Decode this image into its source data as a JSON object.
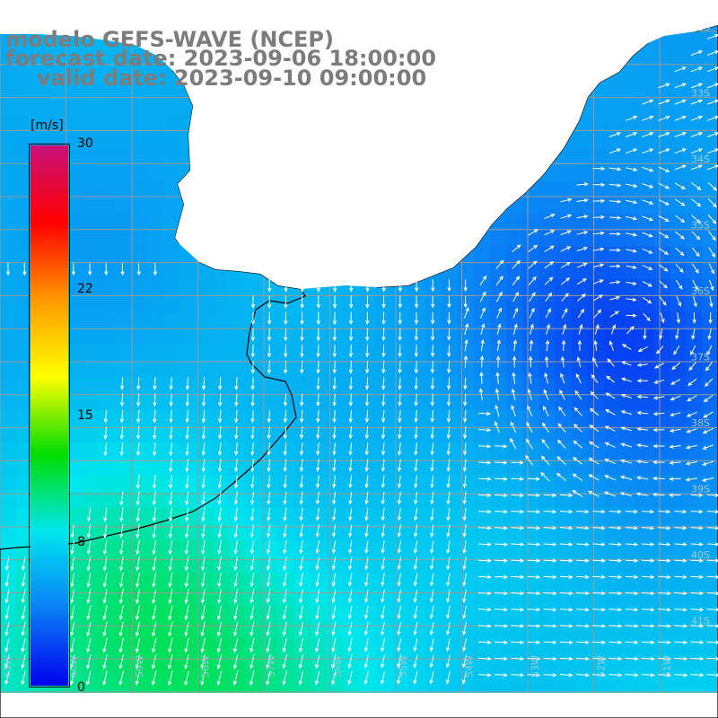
{
  "header": {
    "line1": "modelo GEFS-WAVE (NCEP)",
    "line2": "forecast date: 2023-09-06 18:00:00",
    "line3": "valid date: 2023-09-10 09:00:00"
  },
  "colorbar": {
    "unit": "[m/s]",
    "ticks": [
      {
        "label": "30",
        "value": 30
      },
      {
        "label": "22",
        "value": 22
      },
      {
        "label": "15",
        "value": 15
      },
      {
        "label": "8",
        "value": 8
      },
      {
        "label": "0",
        "value": 0
      }
    ],
    "stops": [
      "#0000ee",
      "#0a7ff5",
      "#00e6ee",
      "#00dd00",
      "#ffff00",
      "#ff9900",
      "#ff0000",
      "#c8107a"
    ]
  },
  "map": {
    "lon_labels": [
      "61W",
      "60W",
      "59W",
      "58W",
      "57W",
      "56W",
      "55W",
      "54W",
      "53W",
      "52W",
      "51W"
    ],
    "lat_labels": [
      "32S",
      "33S",
      "34S",
      "35S",
      "36S",
      "37S",
      "38S",
      "39S",
      "40S",
      "41S"
    ],
    "colors": {
      "ocean_calm": "#0c3fe6",
      "ocean_mid": "#1aa0f2",
      "ocean_fast": "#19e08a",
      "land": "#ffffff",
      "arrow": "#ffffff",
      "coast": "#000000",
      "grid": "#9a9a9a"
    }
  }
}
